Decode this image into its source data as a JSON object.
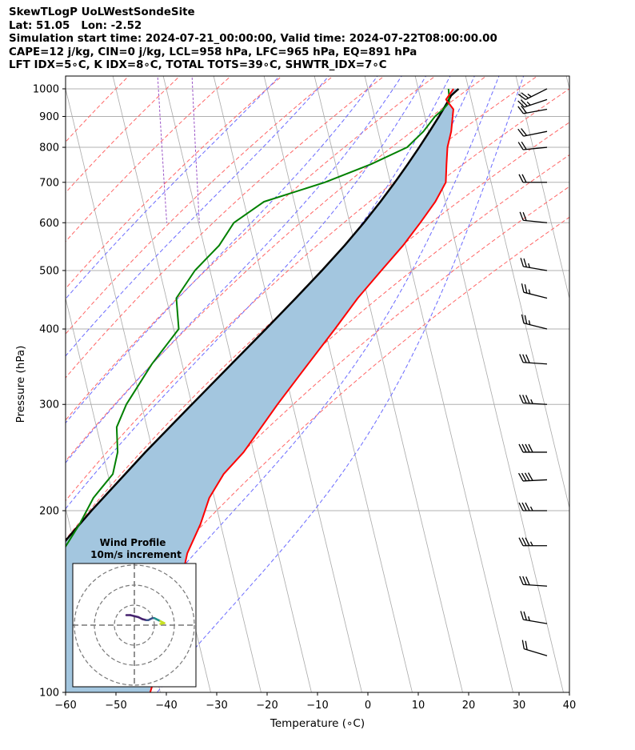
{
  "header": {
    "line1": "SkewTLogP UoLWestSondeSite",
    "line2": "Lat: 51.05   Lon: -2.52",
    "line3": "Simulation start time: 2024-07-21_00:00:00, Valid time: 2024-07-22T08:00:00.00",
    "line4": "CAPE=12 j/kg, CIN=0 j/kg, LCL=958 hPa, LFC=965 hPa, EQ=891 hPa",
    "line5": "LFT IDX=5∘C, K IDX=8∘C, TOTAL TOTS=39∘C, SHWTR_IDX=7∘C"
  },
  "chart_data": {
    "type": "line",
    "chart_kind": "Skew-T log-P diagram",
    "xlabel": "Temperature (∘C)",
    "ylabel": "Pressure (hPa)",
    "xlim": [
      -60,
      40
    ],
    "ylim": [
      1050,
      100
    ],
    "y_scale": "log",
    "x_ticks": [
      "−60",
      "−50",
      "−40",
      "−30",
      "−20",
      "−10",
      "0",
      "10",
      "20",
      "30",
      "40"
    ],
    "y_ticks": [
      "100",
      "200",
      "300",
      "400",
      "500",
      "600",
      "700",
      "800",
      "900",
      "1000"
    ],
    "grid": true,
    "colors": {
      "temperature": "#ff0000",
      "dewpoint": "#008000",
      "parcel": "#000000",
      "cape_fill": "#a3c6df",
      "isotherm": "#a9a9a9",
      "dry_adiabat": "#ff6666",
      "moist_adiabat": "#6a6aff",
      "mixing_ratio": "#9b55c7",
      "grid": "#b0b0b0"
    },
    "series": [
      {
        "key": "temperature",
        "pressure": [
          1000,
          960,
          925,
          900,
          850,
          800,
          750,
          700,
          650,
          600,
          550,
          500,
          450,
          400,
          350,
          300,
          250,
          230,
          210,
          190,
          170,
          150,
          130,
          115,
          100
        ],
        "values": [
          17.0,
          15.0,
          16.0,
          15.5,
          14.5,
          13.0,
          12.0,
          11.0,
          8.0,
          4.0,
          -0.5,
          -6.0,
          -12.0,
          -18.0,
          -25.0,
          -33.0,
          -42.0,
          -47.0,
          -51.0,
          -54.0,
          -58.0,
          -61.0,
          -65.0,
          -68.0,
          -72.0
        ]
      },
      {
        "key": "dewpoint",
        "pressure": [
          1000,
          975,
          950,
          925,
          900,
          850,
          800,
          750,
          700,
          650,
          600,
          550,
          500,
          450,
          400,
          350,
          300,
          275,
          250,
          230,
          210,
          190,
          170,
          150,
          130,
          115,
          100
        ],
        "values": [
          16.0,
          15.8,
          15.5,
          14.0,
          12.0,
          9.0,
          5.0,
          -3.0,
          -13.0,
          -26.0,
          -33.0,
          -37.0,
          -43.0,
          -48.0,
          -49.0,
          -56.0,
          -63.0,
          -66.0,
          -67.0,
          -69.0,
          -74.0,
          -78.0,
          -83.0,
          -89.0,
          -90.0,
          -92.0,
          -95.0
        ]
      },
      {
        "key": "parcel",
        "pressure": [
          1000,
          975,
          958,
          925,
          900,
          850,
          800,
          750,
          700,
          650,
          600,
          550,
          500,
          450,
          400,
          350,
          300,
          250,
          200,
          150,
          100
        ],
        "values": [
          18.0,
          16.2,
          15.5,
          14.0,
          12.8,
          10.2,
          7.4,
          4.3,
          0.9,
          -2.9,
          -7.2,
          -12.1,
          -17.8,
          -24.3,
          -31.7,
          -40.2,
          -50.0,
          -61.5,
          -75.0,
          -91.5,
          -113.0
        ]
      }
    ],
    "cape_shading": {
      "from_pressure": 1000,
      "to_pressure": 100
    },
    "background_lines": {
      "isotherms_c": [
        -160,
        -150,
        -140,
        -130,
        -120,
        -110,
        -100,
        -90,
        -80,
        -70,
        -60,
        -50,
        -40,
        -30,
        -20,
        -10,
        0,
        10,
        20,
        30,
        40
      ],
      "dry_adiabats_c": [
        -50,
        -40,
        -30,
        -20,
        -10,
        0,
        10,
        20,
        30,
        40,
        50,
        60,
        70,
        80
      ],
      "moist_adiabats_c": [
        -20,
        -10,
        0,
        5,
        10,
        15,
        20,
        25,
        30
      ],
      "mixing_ratio_lines": [
        0.1,
        0.2
      ]
    },
    "wind_barbs": [
      {
        "pressure": 1000,
        "u": -12,
        "v": -6
      },
      {
        "pressure": 960,
        "u": -12,
        "v": -4
      },
      {
        "pressure": 925,
        "u": -11,
        "v": -2
      },
      {
        "pressure": 850,
        "u": -10,
        "v": -2
      },
      {
        "pressure": 800,
        "u": -10,
        "v": -1
      },
      {
        "pressure": 700,
        "u": -10,
        "v": 0
      },
      {
        "pressure": 600,
        "u": -10,
        "v": 1
      },
      {
        "pressure": 500,
        "u": -12,
        "v": 2
      },
      {
        "pressure": 450,
        "u": -12,
        "v": 3
      },
      {
        "pressure": 400,
        "u": -12,
        "v": 3
      },
      {
        "pressure": 350,
        "u": -15,
        "v": 1
      },
      {
        "pressure": 300,
        "u": -17,
        "v": 1
      },
      {
        "pressure": 250,
        "u": -20,
        "v": 0
      },
      {
        "pressure": 225,
        "u": -20,
        "v": -1
      },
      {
        "pressure": 200,
        "u": -18,
        "v": 0
      },
      {
        "pressure": 175,
        "u": -17,
        "v": 0
      },
      {
        "pressure": 150,
        "u": -15,
        "v": 1
      },
      {
        "pressure": 130,
        "u": -12,
        "v": 2
      },
      {
        "pressure": 115,
        "u": -10,
        "v": 3
      }
    ],
    "hodograph": {
      "title": "Wind Profile",
      "subtitle": "10m/s increment",
      "rings_ms": [
        10,
        20,
        30
      ],
      "u": [
        -4,
        -2,
        0,
        2,
        4,
        6,
        7,
        8,
        9,
        10,
        11,
        12,
        13,
        14,
        15,
        14,
        13
      ],
      "v": [
        5,
        5,
        4.5,
        4,
        3,
        2.5,
        2.5,
        3,
        3.5,
        3.5,
        3,
        2.5,
        2,
        1.5,
        1,
        0.8,
        0.6
      ]
    }
  }
}
